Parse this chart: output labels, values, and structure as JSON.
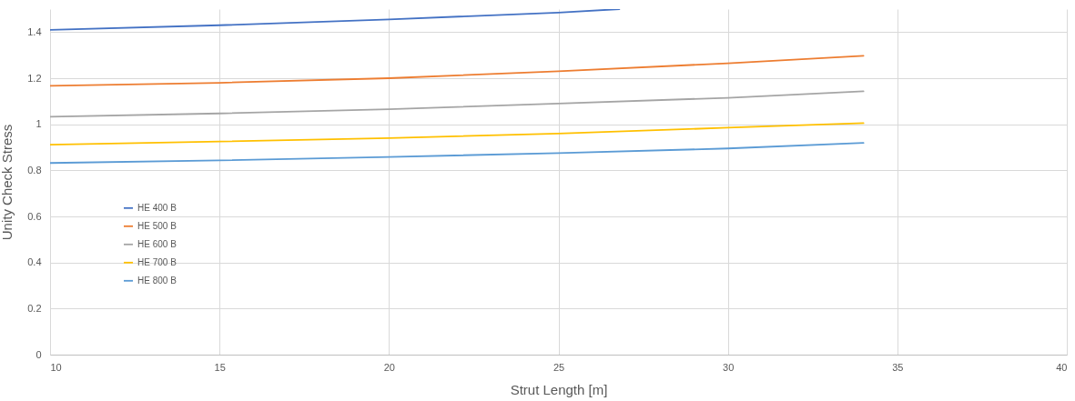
{
  "chart_data": {
    "type": "line",
    "xlabel": "Strut Length [m]",
    "ylabel": "Unity Check Stress",
    "xlim": [
      10,
      40
    ],
    "xticks": [
      10,
      15,
      20,
      25,
      30,
      35,
      40
    ],
    "ylim": [
      0,
      1.5
    ],
    "yticks": [
      0,
      0.2,
      0.4,
      0.6,
      0.8,
      1,
      1.2,
      1.4
    ],
    "grid": true,
    "legend": "left",
    "line_style": "solid",
    "series": [
      {
        "name": "HE 400 B",
        "color": "#4472c4",
        "x": [
          10,
          15,
          20,
          25,
          26.8
        ],
        "values": [
          1.41,
          1.43,
          1.455,
          1.485,
          1.5
        ]
      },
      {
        "name": "HE 500 B",
        "color": "#ed7d31",
        "x": [
          10,
          15,
          20,
          25,
          30,
          34
        ],
        "values": [
          1.167,
          1.18,
          1.2,
          1.23,
          1.265,
          1.297
        ]
      },
      {
        "name": "HE 600 B",
        "color": "#a5a5a5",
        "x": [
          10,
          15,
          20,
          25,
          30,
          34
        ],
        "values": [
          1.033,
          1.047,
          1.065,
          1.09,
          1.115,
          1.143
        ]
      },
      {
        "name": "HE 700 B",
        "color": "#ffc000",
        "x": [
          10,
          15,
          20,
          25,
          30,
          34
        ],
        "values": [
          0.911,
          0.925,
          0.94,
          0.96,
          0.985,
          1.005
        ]
      },
      {
        "name": "HE 800 B",
        "color": "#5b9bd5",
        "x": [
          10,
          15,
          20,
          25,
          30,
          34
        ],
        "values": [
          0.832,
          0.843,
          0.858,
          0.875,
          0.895,
          0.919
        ]
      }
    ]
  }
}
